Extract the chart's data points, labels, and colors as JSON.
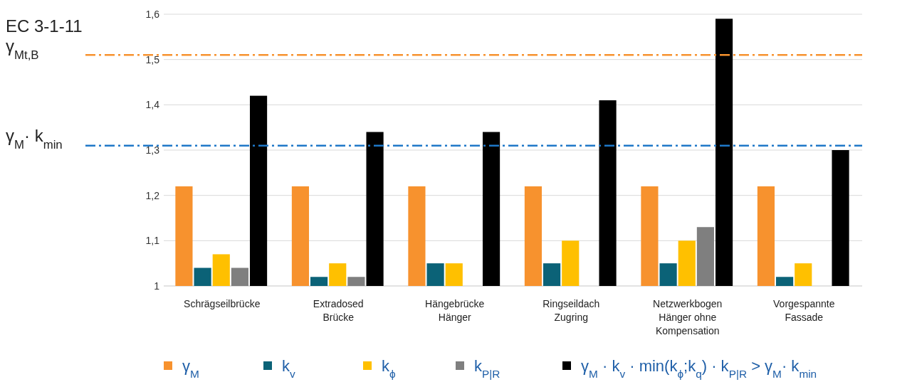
{
  "chart_data": {
    "type": "bar",
    "categories": [
      "Schrägseilbrücke",
      "Extradosed\nBrücke",
      "Hängebrücke\nHänger",
      "Ringseildach\nZugring",
      "Netzwerkbogen\nHänger ohne\nKompensation",
      "Vorgespannte\nFassade"
    ],
    "series": [
      {
        "name": "γ$_{M}$",
        "color": "#f7922e",
        "values": [
          1.22,
          1.22,
          1.22,
          1.22,
          1.22,
          1.22
        ]
      },
      {
        "name": "k$_{v}$",
        "color": "#0b6277",
        "values": [
          1.04,
          1.02,
          1.05,
          1.05,
          1.05,
          1.02
        ]
      },
      {
        "name": "k$_{ϕ}$",
        "color": "#ffc000",
        "values": [
          1.07,
          1.05,
          1.05,
          1.1,
          1.1,
          1.05
        ]
      },
      {
        "name": "k$_{P|R}$",
        "color": "#7f7f7f",
        "values": [
          1.04,
          1.02,
          1.0,
          1.0,
          1.13,
          1.0
        ]
      },
      {
        "name": "γ$_{M}$ · k$_{v}$ · min(k$_{ϕ}$;k$_{q}$) · k$_{P|R}$ > γ$_{M}$· k$_{min}$",
        "color": "#000000",
        "values": [
          1.42,
          1.34,
          1.34,
          1.41,
          1.59,
          1.3
        ]
      }
    ],
    "ylim": [
      1,
      1.6
    ],
    "yticks": [
      1,
      {
        "value": 1.1,
        "label": "1,1"
      },
      {
        "value": 1.2,
        "label": "1,2"
      },
      {
        "value": 1.3,
        "label": "1,3"
      },
      {
        "value": 1.4,
        "label": "1,4"
      },
      {
        "value": 1.5,
        "label": "1,5"
      },
      {
        "value": 1.6,
        "label": "1,6"
      }
    ],
    "grid": "y",
    "legend": "bottom",
    "ref_lines": [
      {
        "axis": "y",
        "value": 1.51,
        "label": "EC 3-1-11\nγ$_{Mt,B}$",
        "color": "#f7922e",
        "line_style": "dashed"
      },
      {
        "axis": "y",
        "value": 1.31,
        "label": "γ$_{M}$· k$_{min}$",
        "color": "#1f78c8",
        "line_style": "dashed"
      }
    ]
  }
}
